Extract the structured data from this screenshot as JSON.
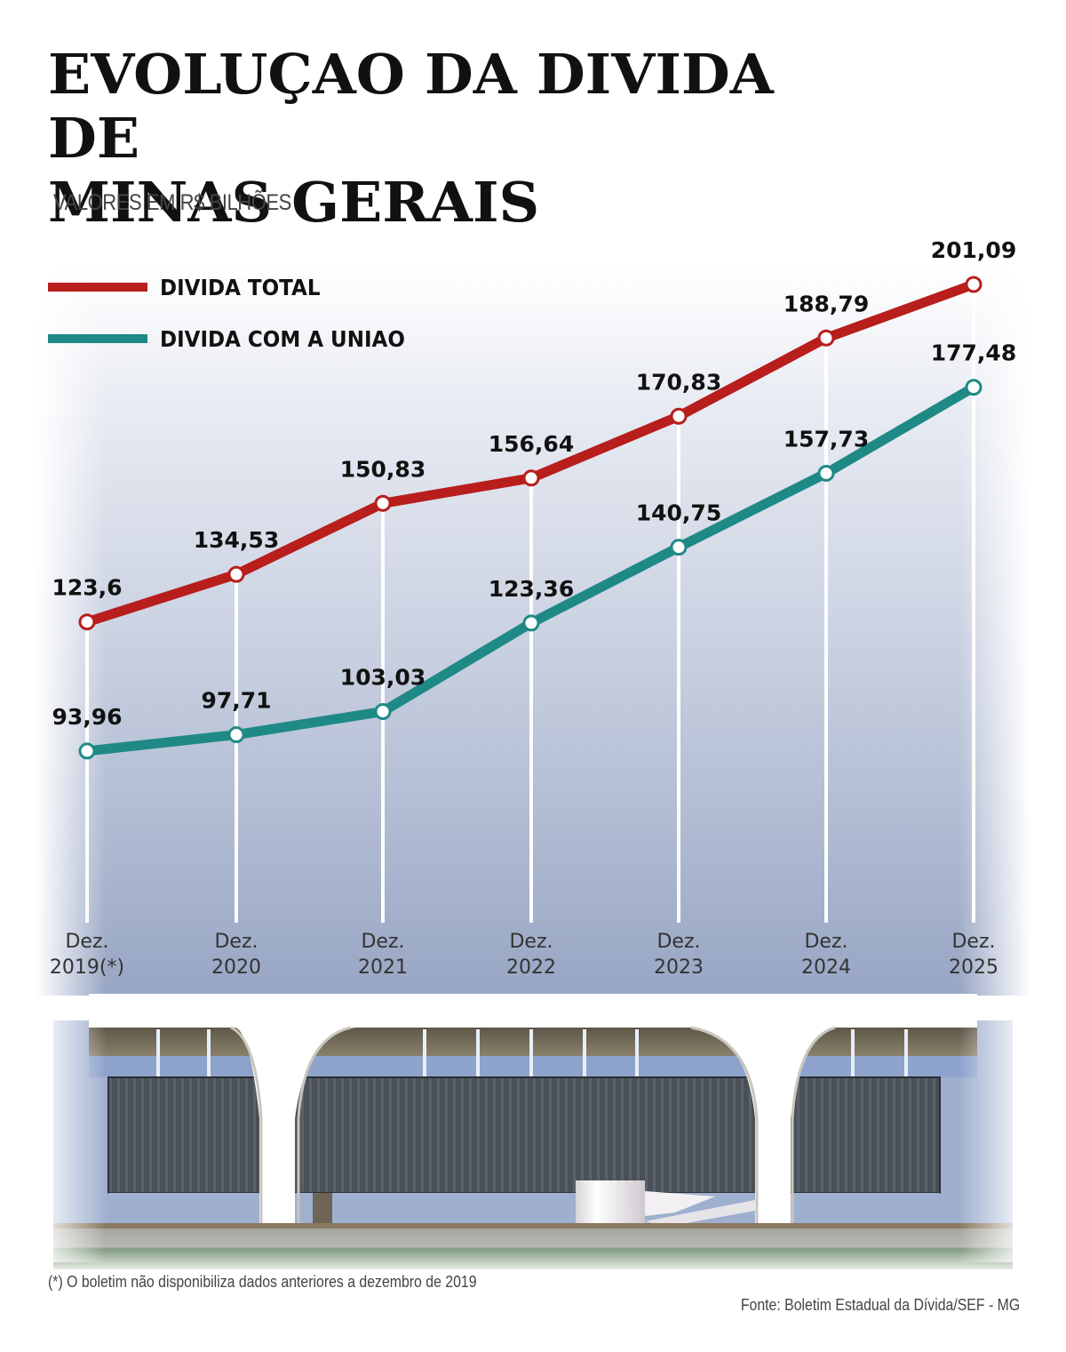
{
  "header": {
    "title_line1": "EVOLUÇAO DA DIVIDA DE",
    "title_line2": "MINAS GERAIS",
    "subtitle": "VALORES EM R$ BILHÕES"
  },
  "legend": [
    {
      "label": "DIVIDA TOTAL",
      "color": "#b81e1c"
    },
    {
      "label": "DIVIDA COM A UNIAO",
      "color": "#1f8a85"
    }
  ],
  "footer": {
    "footnote": "(*) O boletim não disponibiliza dados anteriores a dezembro de 2019",
    "source": "Fonte: Boletim Estadual da Dívida/SEF - MG"
  },
  "chart_data": {
    "type": "line",
    "title": "EVOLUÇAO DA DIVIDA DE MINAS GERAIS",
    "subtitle": "VALORES EM R$ BILHÕES",
    "xlabel": "",
    "ylabel": "R$ bilhões",
    "categories": [
      "Dez. 2019(*)",
      "Dez. 2020",
      "Dez. 2021",
      "Dez. 2022",
      "Dez. 2023",
      "Dez. 2024",
      "Dez. 2025"
    ],
    "category_lines": [
      [
        "Dez.",
        "2019(*)"
      ],
      [
        "Dez.",
        "2020"
      ],
      [
        "Dez.",
        "2021"
      ],
      [
        "Dez.",
        "2022"
      ],
      [
        "Dez.",
        "2023"
      ],
      [
        "Dez.",
        "2024"
      ],
      [
        "Dez.",
        "2025"
      ]
    ],
    "series": [
      {
        "name": "DIVIDA TOTAL",
        "color": "#b81e1c",
        "values": [
          123.6,
          134.53,
          150.83,
          156.64,
          170.83,
          188.79,
          201.09
        ],
        "labels": [
          "123,6",
          "134,53",
          "150,83",
          "156,64",
          "170,83",
          "188,79",
          "201,09"
        ]
      },
      {
        "name": "DIVIDA COM A UNIAO",
        "color": "#1f8a85",
        "values": [
          93.96,
          97.71,
          103.03,
          123.36,
          140.75,
          157.73,
          177.48
        ],
        "labels": [
          "93,96",
          "97,71",
          "103,03",
          "123,36",
          "140,75",
          "157,73",
          "177,48"
        ]
      }
    ],
    "legend_position": "top-left",
    "grid": "vertical white lines at each category",
    "y_axis_visible": false
  }
}
